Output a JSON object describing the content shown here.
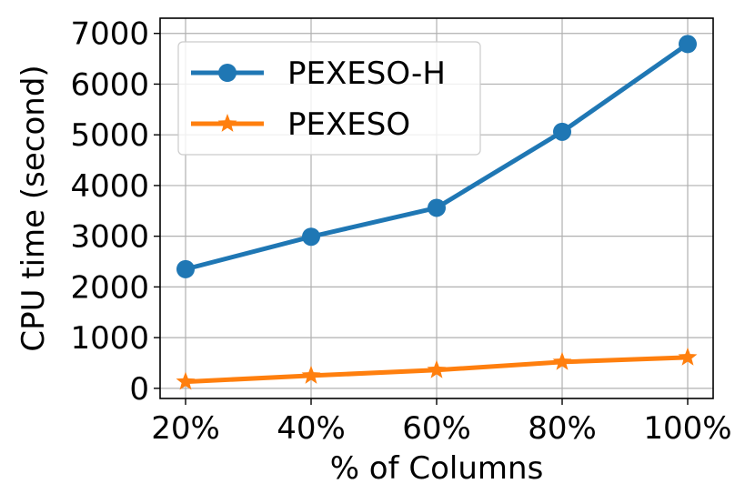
{
  "chart_data": {
    "type": "line",
    "categories": [
      "20%",
      "40%",
      "60%",
      "80%",
      "100%"
    ],
    "xlabel": "% of Columns",
    "ylabel": "CPU time (second)",
    "ylim": [
      -200,
      7300
    ],
    "yticks": [
      0,
      1000,
      2000,
      3000,
      4000,
      5000,
      6000,
      7000
    ],
    "grid": true,
    "legend_position": "top-left",
    "series": [
      {
        "name": "PEXESO-H",
        "color": "#1f77b4",
        "marker": "circle",
        "values": [
          2350,
          2990,
          3560,
          5060,
          6790
        ]
      },
      {
        "name": "PEXESO",
        "color": "#ff7f0e",
        "marker": "star",
        "values": [
          130,
          250,
          360,
          520,
          610
        ]
      }
    ]
  }
}
